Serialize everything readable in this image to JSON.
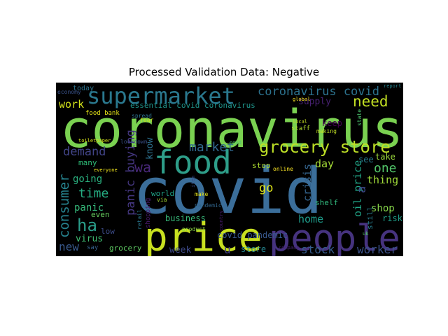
{
  "chart_data": {
    "type": "wordcloud",
    "title": "Processed Validation Data: Negative",
    "background": "#000000",
    "words": [
      {
        "text": "coronavirus",
        "color": "#7ad151"
      },
      {
        "text": "covid",
        "color": "#3b6e9a"
      },
      {
        "text": "price",
        "color": "#c8e020"
      },
      {
        "text": "people",
        "color": "#46337f"
      },
      {
        "text": "supermarket",
        "color": "#2a788e"
      },
      {
        "text": "food",
        "color": "#2e9e89"
      },
      {
        "text": "grocery store",
        "color": "#bddf26"
      },
      {
        "text": "coronavirus covid",
        "color": "#2c728e"
      },
      {
        "text": "need",
        "color": "#c2df23"
      },
      {
        "text": "demand",
        "color": "#414487"
      },
      {
        "text": "market",
        "color": "#31688e"
      },
      {
        "text": "work",
        "color": "#d2e21b"
      },
      {
        "text": "wa",
        "color": "#482878"
      },
      {
        "text": "time",
        "color": "#25ac82"
      },
      {
        "text": "panic buying",
        "color": "#453781"
      },
      {
        "text": "consumer",
        "color": "#26828e"
      },
      {
        "text": "ha",
        "color": "#2a9d8a"
      },
      {
        "text": "panic",
        "color": "#35b779"
      },
      {
        "text": "going",
        "color": "#2ab07f"
      },
      {
        "text": "one",
        "color": "#52c569"
      },
      {
        "text": "day",
        "color": "#a5db36"
      },
      {
        "text": "crisis",
        "color": "#33638d"
      },
      {
        "text": "oil price",
        "color": "#20a486"
      },
      {
        "text": "go",
        "color": "#dde318"
      },
      {
        "text": "home",
        "color": "#1e9b8a"
      },
      {
        "text": "shop",
        "color": "#86d549"
      },
      {
        "text": "thing",
        "color": "#a0da39"
      },
      {
        "text": "stock",
        "color": "#365c8d"
      },
      {
        "text": "worker",
        "color": "#3b528b"
      },
      {
        "text": "new",
        "color": "#38588c"
      },
      {
        "text": "virus",
        "color": "#40bd72"
      },
      {
        "text": "week",
        "color": "#3e4a89"
      },
      {
        "text": "covid pandemic",
        "color": "#38588c"
      },
      {
        "text": "store",
        "color": "#25848e"
      },
      {
        "text": "grocery",
        "color": "#5ec962"
      },
      {
        "text": "supply",
        "color": "#482173"
      },
      {
        "text": "essential covid coronavirus",
        "color": "#1f958b"
      },
      {
        "text": "know",
        "color": "#2d708e"
      },
      {
        "text": "stop",
        "color": "#addc30"
      },
      {
        "text": "see",
        "color": "#287c8e"
      },
      {
        "text": "take",
        "color": "#9bd93c"
      },
      {
        "text": "a",
        "color": "#3e4989"
      },
      {
        "text": "risk",
        "color": "#1f9e89"
      },
      {
        "text": "business",
        "color": "#37b878"
      },
      {
        "text": "world",
        "color": "#20a386"
      },
      {
        "text": "even",
        "color": "#65cb5e"
      },
      {
        "text": "low",
        "color": "#3d4d8a"
      },
      {
        "text": "many",
        "color": "#2ebc77"
      },
      {
        "text": "keep",
        "color": "#440154"
      },
      {
        "text": "shelf",
        "color": "#31b57b"
      },
      {
        "text": "u",
        "color": "#423f85"
      },
      {
        "text": "still",
        "color": "#287d8e"
      },
      {
        "text": "today",
        "color": "#2c738e"
      },
      {
        "text": "economy",
        "color": "#3a538b"
      },
      {
        "text": "food bank",
        "color": "#e5e419"
      },
      {
        "text": "online",
        "color": "#fde725"
      },
      {
        "text": "lockdown",
        "color": "#3b528b"
      },
      {
        "text": "everyone",
        "color": "#f1e51d"
      },
      {
        "text": "say",
        "color": "#35608d"
      },
      {
        "text": "product",
        "color": "#8bd646"
      },
      {
        "text": "retail",
        "color": "#2a768e"
      },
      {
        "text": "shopping",
        "color": "#481a6c"
      },
      {
        "text": "pandemic",
        "color": "#31678e"
      },
      {
        "text": "staff",
        "color": "#b0dd2f"
      },
      {
        "text": "making",
        "color": "#c0df25"
      },
      {
        "text": "global",
        "color": "#fde725"
      },
      {
        "text": "local",
        "color": "#c5e021"
      },
      {
        "text": "report",
        "color": "#25838e"
      },
      {
        "text": "country",
        "color": "#481c6e"
      },
      {
        "text": "company",
        "color": "#482475"
      },
      {
        "text": "make",
        "color": "#e7e419"
      },
      {
        "text": "via",
        "color": "#a8db34"
      },
      {
        "text": "spread",
        "color": "#2c728e"
      },
      {
        "text": "fear",
        "color": "#c8e020"
      },
      {
        "text": "good",
        "color": "#50c46a"
      },
      {
        "text": "toiletpaper",
        "color": "#d5e21a"
      },
      {
        "text": "item",
        "color": "#3b528b"
      },
      {
        "text": "uk",
        "color": "#56c667"
      },
      {
        "text": "state",
        "color": "#4ac16d"
      }
    ]
  }
}
